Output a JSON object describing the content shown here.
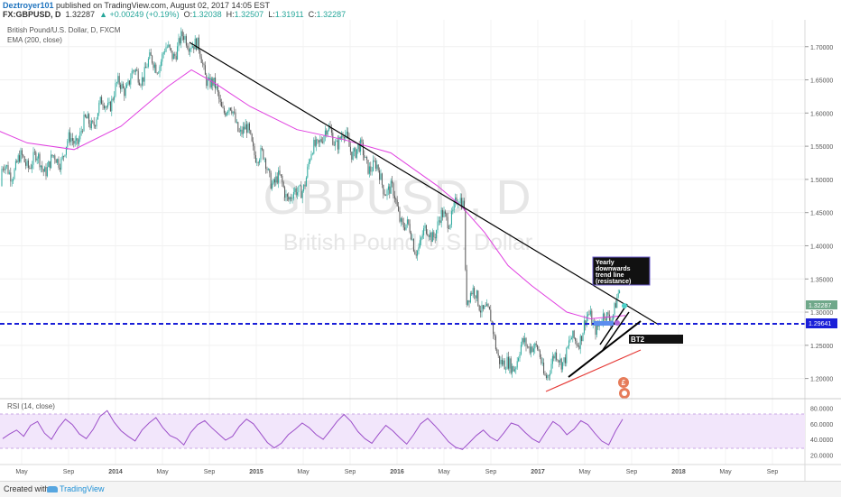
{
  "header": {
    "author": "Deztroyer101",
    "published": "published on TradingView.com, August 02, 2017 14:05 EST",
    "symbol": "FX:GBPUSD, D",
    "last": "1.32287",
    "change": "▲ +0.00249 (+0.19%)",
    "o_label": "O:",
    "o_value": "1.32038",
    "h_label": "H:",
    "h_value": "1.32507",
    "l_label": "L:",
    "l_value": "1.31911",
    "c_label": "C:",
    "c_value": "1.32287"
  },
  "chart_data": {
    "type": "line",
    "title": "British Pound/U.S. Dollar, D, FXCM",
    "indicator_label": "EMA (200, close)",
    "watermark_symbol": "GBPUSD, D",
    "watermark_name": "British Pound/U.S. Dollar",
    "price_axis": {
      "ticks": [
        "1.70000",
        "1.65000",
        "1.60000",
        "1.55000",
        "1.50000",
        "1.45000",
        "1.40000",
        "1.35000",
        "1.30000",
        "1.25000",
        "1.20000"
      ],
      "ylim": [
        1.175,
        1.735
      ]
    },
    "time_axis": {
      "ticks": [
        "May",
        "Sep",
        "2014",
        "May",
        "Sep",
        "2015",
        "May",
        "Sep",
        "2016",
        "May",
        "Sep",
        "2017",
        "May",
        "Sep",
        "2018",
        "May",
        "Sep"
      ]
    },
    "price_series_dates": [
      "2013-01",
      "2013-05",
      "2013-07",
      "2013-09",
      "2014-01",
      "2014-05",
      "2014-07",
      "2014-09",
      "2014-12",
      "2015-02",
      "2015-04",
      "2015-06",
      "2015-08",
      "2015-10",
      "2015-12",
      "2016-02",
      "2016-04",
      "2016-06-23",
      "2016-06-27",
      "2016-08",
      "2016-10-07",
      "2016-12",
      "2017-01",
      "2017-03",
      "2017-05",
      "2017-06",
      "2017-08-02"
    ],
    "price_series": [
      1.49,
      1.53,
      1.52,
      1.56,
      1.64,
      1.69,
      1.715,
      1.63,
      1.56,
      1.5,
      1.47,
      1.57,
      1.56,
      1.53,
      1.48,
      1.4,
      1.43,
      1.47,
      1.33,
      1.31,
      1.21,
      1.26,
      1.21,
      1.24,
      1.29,
      1.28,
      1.32287
    ],
    "ema_series_dates": [
      "2013-01",
      "2013-05",
      "2013-09",
      "2014-01",
      "2014-05",
      "2014-07",
      "2014-09",
      "2014-12",
      "2015-04",
      "2015-08",
      "2015-12",
      "2016-04",
      "2016-06",
      "2016-08",
      "2016-10",
      "2016-12",
      "2017-03",
      "2017-05",
      "2017-08"
    ],
    "ema_series": [
      1.585,
      1.555,
      1.545,
      1.58,
      1.64,
      1.665,
      1.645,
      1.61,
      1.575,
      1.56,
      1.54,
      1.49,
      1.46,
      1.42,
      1.37,
      1.34,
      1.3,
      1.29,
      1.295
    ],
    "last_price_label": "1.32287",
    "support_label": "1.29641",
    "annotations": {
      "yearly_trend": "Yearly downwards trend line (resistance)",
      "bt2": "BT2"
    },
    "rsi": {
      "label": "RSI (14, close)",
      "ticks": [
        "80.0000",
        "60.0000",
        "40.0000",
        "20.0000"
      ],
      "ylim": [
        10,
        90
      ],
      "bands": [
        70,
        30
      ],
      "values": [
        41,
        47,
        52,
        44,
        58,
        63,
        48,
        40,
        55,
        66,
        59,
        47,
        41,
        53,
        70,
        77,
        62,
        51,
        44,
        38,
        52,
        61,
        68,
        55,
        45,
        41,
        33,
        49,
        59,
        64,
        55,
        47,
        39,
        44,
        57,
        66,
        60,
        48,
        36,
        29,
        35,
        46,
        53,
        61,
        55,
        46,
        40,
        51,
        63,
        72,
        63,
        50,
        41,
        35,
        47,
        58,
        51,
        42,
        34,
        46,
        60,
        67,
        58,
        48,
        37,
        30,
        27,
        36,
        45,
        52,
        43,
        38,
        49,
        61,
        58,
        49,
        41,
        36,
        50,
        63,
        57,
        46,
        53,
        64,
        59,
        48,
        38,
        33,
        51,
        66
      ]
    }
  },
  "footer": {
    "created": "Created with",
    "brand": "TradingView"
  },
  "colors": {
    "candle_up": "#26a69a",
    "candle_down": "#555555",
    "ema": "#e040e0",
    "support": "#1a1fd8",
    "trend": "#000000",
    "rsi": "#9c4fc9",
    "red_trend": "#e53935"
  }
}
